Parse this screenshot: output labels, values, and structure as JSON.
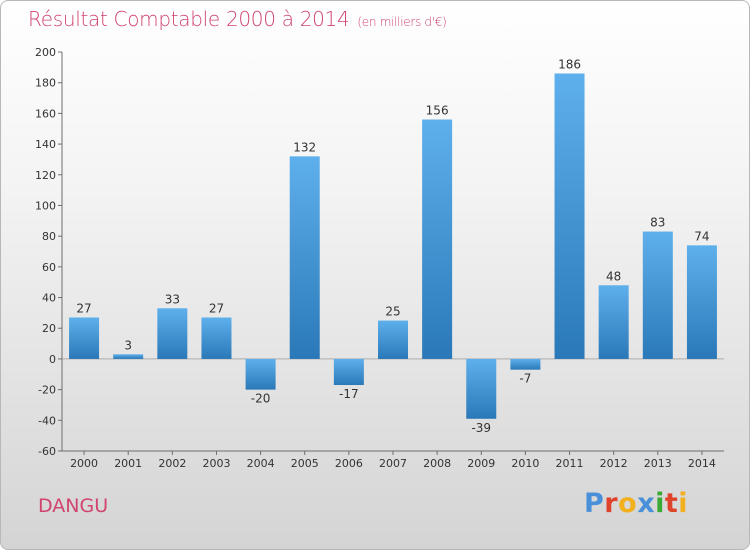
{
  "header": {
    "title": "Résultat Comptable 2000 à 2014",
    "subtitle": "(en milliers d'€)"
  },
  "footer": {
    "commune": "DANGU",
    "logo_text": "Proxiti",
    "logo_colors": [
      "#4a90d9",
      "#e0432b",
      "#f2b01e",
      "#4a90d9",
      "#3aaa35",
      "#e0432b",
      "#f2b01e"
    ]
  },
  "colors": {
    "title": "#d0446e",
    "bar_top": "#5eb0ec",
    "bar_bottom": "#2a78b8"
  },
  "chart_data": {
    "type": "bar",
    "categories": [
      "2000",
      "2001",
      "2002",
      "2003",
      "2004",
      "2005",
      "2006",
      "2007",
      "2008",
      "2009",
      "2010",
      "2011",
      "2012",
      "2013",
      "2014"
    ],
    "values": [
      27,
      3,
      33,
      27,
      -20,
      132,
      -17,
      25,
      156,
      -39,
      -7,
      186,
      48,
      83,
      74
    ],
    "value_labels": [
      "27",
      "3",
      "33",
      "27",
      "-20",
      "132",
      "-17",
      "25",
      "156",
      "-39",
      "-7",
      "186",
      "48",
      "83",
      "74"
    ],
    "ylim": [
      -60,
      200
    ],
    "yticks": [
      -60,
      -40,
      -20,
      0,
      20,
      40,
      60,
      80,
      100,
      120,
      140,
      160,
      180,
      200
    ],
    "grid": false,
    "title": "Résultat Comptable 2000 à 2014",
    "xlabel": "",
    "ylabel": ""
  }
}
